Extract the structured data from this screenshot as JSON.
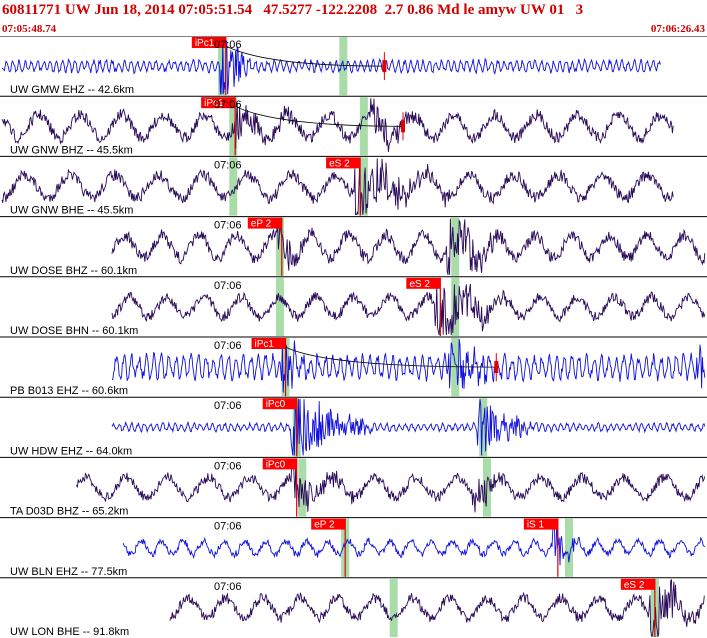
{
  "header": {
    "title": "60811771 UW Jun 18, 2014 07:05:51.54   47.5277 -122.2208  2.7 0.86 Md le amyw UW 01   3",
    "start_time": "07:05:48.74",
    "end_time": "07:06:26.43"
  },
  "colors": {
    "trace_dark": "#2a0a5a",
    "trace_blue": "#1010e0",
    "pick_bg": "#ff0000",
    "pick_text": "#ffffff",
    "window_band": "#a8dca8",
    "title_red": "#d00000",
    "arrival_red": "#e00000"
  },
  "chart_data": {
    "type": "seismogram",
    "time_axis": {
      "start": "07:05:48.74",
      "end": "07:06:26.43",
      "marker": "07:06"
    },
    "traces": [
      {
        "label": "UW GMW EHZ -- 42.6km",
        "color": "blue",
        "data_start_s": 0,
        "data_end_s": 35.3,
        "amplitude": 0.15,
        "freq": 3.0,
        "events": [
          {
            "t": 12.0,
            "amp": 0.7,
            "dur": 1.5
          }
        ],
        "bands_s": [
          11.8,
          18.3
        ],
        "picks": [
          {
            "label": "iPc1",
            "t": 12.0
          }
        ],
        "arrival_s": 20.5,
        "time_label": "07:06",
        "amp_curve": true
      },
      {
        "label": "UW GNW BHZ -- 45.5km",
        "color": "dark",
        "data_start_s": 0,
        "data_end_s": 36.0,
        "amplitude": 0.35,
        "freq": 0.45,
        "events": [
          {
            "t": 12.5,
            "amp": 0.4,
            "dur": 4.0
          },
          {
            "t": 20.0,
            "amp": 0.3,
            "dur": 3.0
          }
        ],
        "bands_s": [
          12.4,
          19.4
        ],
        "picks": [
          {
            "label": "iPc1",
            "t": 12.5
          }
        ],
        "arrival_s": 21.5,
        "time_label": "07:06",
        "amp_curve": true
      },
      {
        "label": "UW GNW BHE -- 45.5km",
        "color": "dark",
        "data_start_s": 0,
        "data_end_s": 36.0,
        "amplitude": 0.35,
        "freq": 0.42,
        "events": [
          {
            "t": 19.2,
            "amp": 0.6,
            "dur": 5.0
          }
        ],
        "bands_s": [
          12.4,
          19.4
        ],
        "picks": [
          {
            "label": "eS 2",
            "t": 19.2
          }
        ],
        "time_label": "07:06"
      },
      {
        "label": "UW DOSE BHZ -- 60.1km",
        "color": "dark",
        "data_start_s": 5.9,
        "data_end_s": 38.9,
        "amplitude": 0.35,
        "freq": 0.5,
        "events": [
          {
            "t": 15.0,
            "amp": 0.3,
            "dur": 3.0
          },
          {
            "t": 24.0,
            "amp": 0.6,
            "dur": 3.5
          }
        ],
        "bands_s": [
          14.9,
          24.3
        ],
        "picks": [
          {
            "label": "eP 2",
            "t": 15.0
          }
        ],
        "time_label": "07:06"
      },
      {
        "label": "UW DOSE BHN -- 60.1km",
        "color": "dark",
        "data_start_s": 5.9,
        "data_end_s": 38.9,
        "amplitude": 0.3,
        "freq": 0.5,
        "events": [
          {
            "t": 23.5,
            "amp": 0.6,
            "dur": 4.0
          }
        ],
        "bands_s": [
          14.9,
          24.3
        ],
        "picks": [
          {
            "label": "eS 2",
            "t": 23.5
          }
        ],
        "time_label": "07:06"
      },
      {
        "label": "PB B013 EHZ -- 60.6km",
        "color": "blue",
        "data_start_s": 5.9,
        "data_end_s": 38.9,
        "amplitude": 0.3,
        "freq": 2.5,
        "events": [
          {
            "t": 15.2,
            "amp": 0.5,
            "dur": 2.0
          },
          {
            "t": 24.2,
            "amp": 0.5,
            "dur": 3.0
          },
          {
            "t": 37.5,
            "amp": 0.4,
            "dur": 1.5
          }
        ],
        "bands_s": [
          15.2,
          24.3
        ],
        "picks": [
          {
            "label": "iPc1",
            "t": 15.2
          }
        ],
        "arrival_s": 26.5,
        "time_label": "07:06",
        "amp_curve": true
      },
      {
        "label": "UW HDW EHZ -- 64.0km",
        "color": "blue",
        "data_start_s": 5.9,
        "data_end_s": 39.7,
        "amplitude": 0.1,
        "freq": 3.0,
        "events": [
          {
            "t": 15.8,
            "amp": 0.85,
            "dur": 4.0
          },
          {
            "t": 25.8,
            "amp": 0.55,
            "dur": 3.0
          }
        ],
        "bands_s": [
          15.8,
          25.8
        ],
        "picks": [
          {
            "label": "iPc0",
            "t": 15.8
          }
        ],
        "time_label": "07:06"
      },
      {
        "label": "TA D03D BHZ -- 65.2km",
        "color": "dark",
        "data_start_s": 4.0,
        "data_end_s": 40.0,
        "amplitude": 0.3,
        "freq": 0.45,
        "events": [
          {
            "t": 15.8,
            "amp": 0.4,
            "dur": 3.0
          },
          {
            "t": 25.5,
            "amp": 0.3,
            "dur": 3.0
          }
        ],
        "bands_s": [
          16.1,
          26.0
        ],
        "picks": [
          {
            "label": "iPc0",
            "t": 15.8
          }
        ],
        "time_label": "07:06"
      },
      {
        "label": "UW BLN EHZ -- 77.5km",
        "color": "blue",
        "data_start_s": 6.5,
        "data_end_s": 42.0,
        "amplitude": 0.2,
        "freq": 0.9,
        "events": [
          {
            "t": 29.8,
            "amp": 0.4,
            "dur": 1.5
          }
        ],
        "bands_s": [
          18.4,
          30.4
        ],
        "picks": [
          {
            "label": "eP 2",
            "t": 18.4
          },
          {
            "label": "iS 1",
            "t": 29.8
          }
        ],
        "time_label": "07:06"
      },
      {
        "label": "UW LON BHE -- 91.8km",
        "color": "dark",
        "data_start_s": 9.0,
        "data_end_s": 44.8,
        "amplitude": 0.3,
        "freq": 0.5,
        "events": [
          {
            "t": 35.0,
            "amp": 0.55,
            "dur": 3.0
          }
        ],
        "bands_s": [
          21.0,
          35.0
        ],
        "picks": [
          {
            "label": "eS 2",
            "t": 35.0
          }
        ],
        "time_label": "07:06"
      }
    ]
  }
}
